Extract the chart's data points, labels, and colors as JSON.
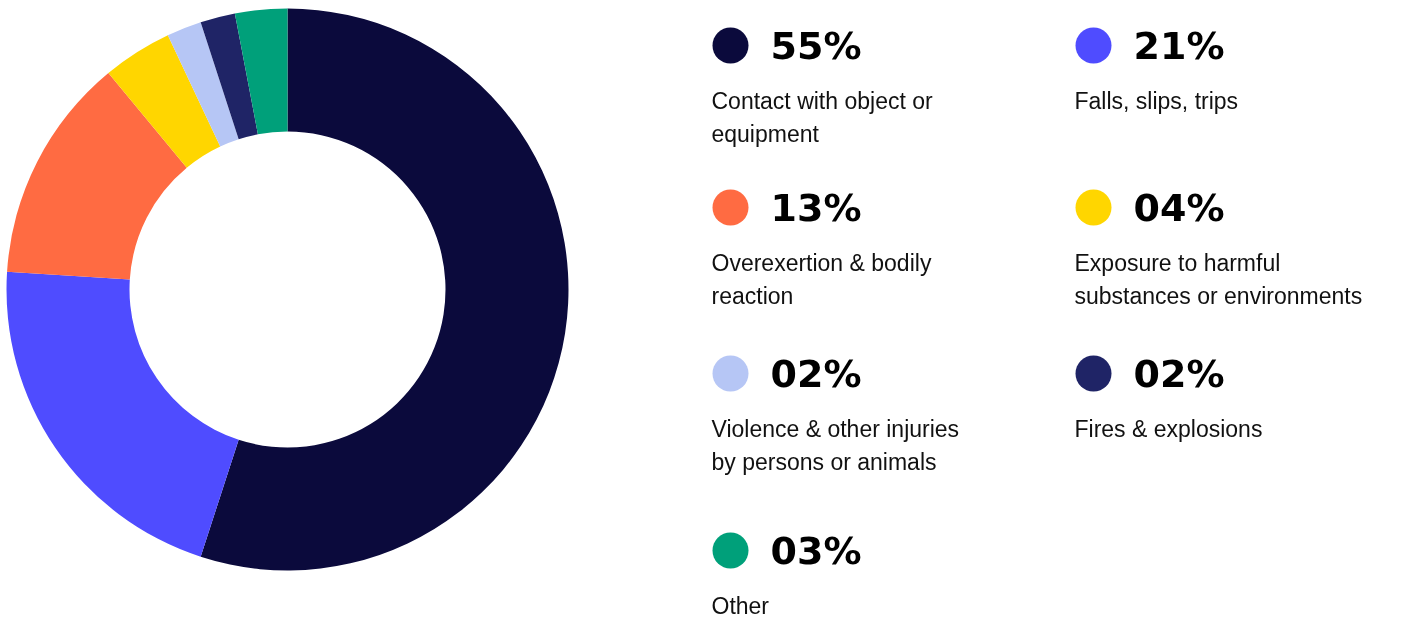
{
  "chart_data": {
    "type": "donut",
    "categories": [
      "Contact with object or equipment",
      "Falls, slips, trips",
      "Overexertion & bodily reaction",
      "Exposure to harmful substances or environments",
      "Violence & other injuries by persons or animals",
      "Fires & explosions",
      "Other"
    ],
    "values": [
      55,
      21,
      13,
      4,
      2,
      2,
      3
    ],
    "value_labels": [
      "55%",
      "21%",
      "13%",
      "04%",
      "02%",
      "02%",
      "03%"
    ],
    "colors": [
      "#0b0a3c",
      "#4f4cff",
      "#ff6b42",
      "#ffd600",
      "#b6c6f5",
      "#1f2466",
      "#00a07a"
    ],
    "legend": "right"
  }
}
